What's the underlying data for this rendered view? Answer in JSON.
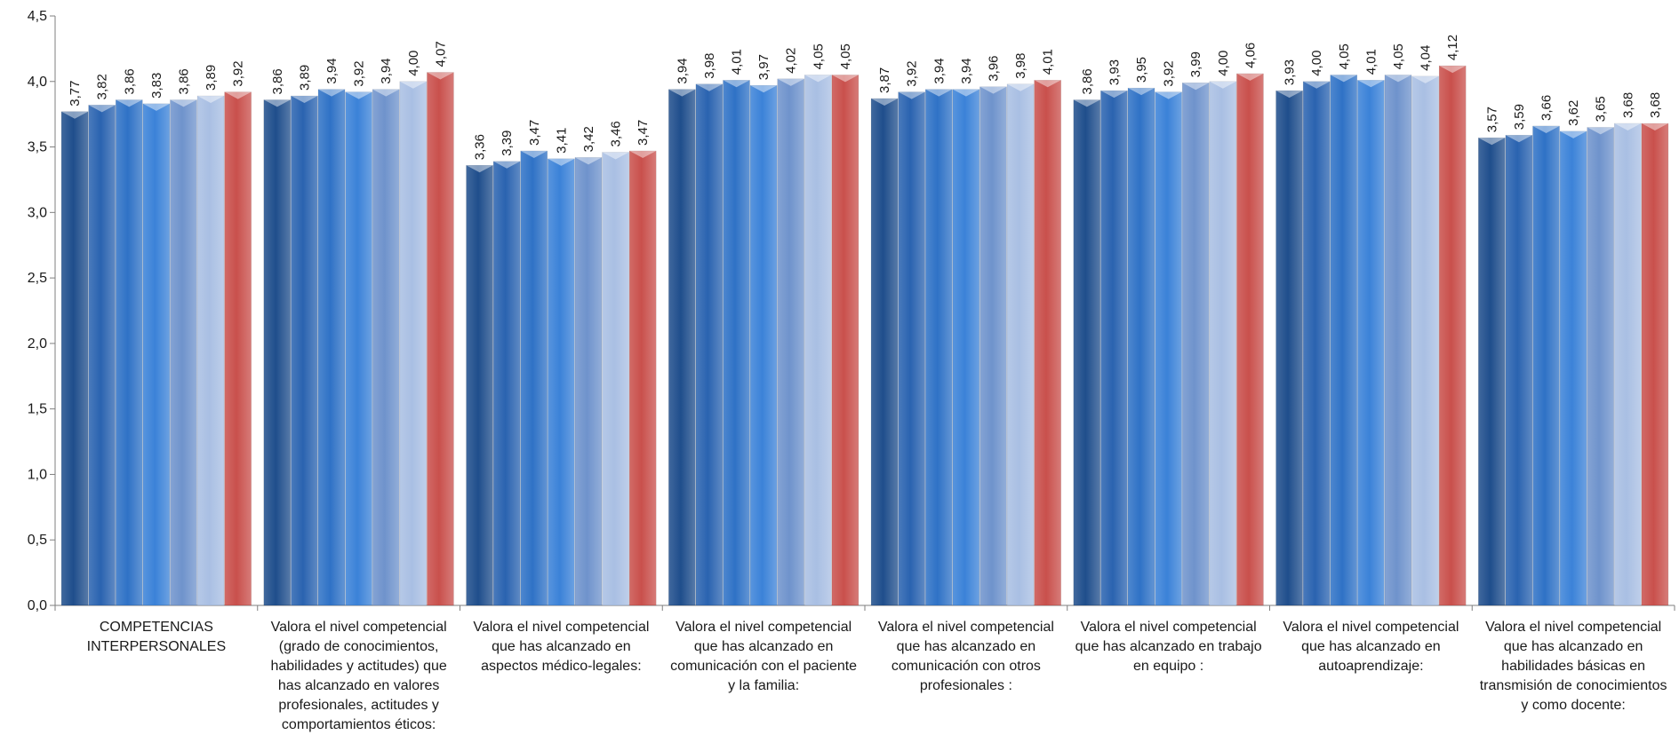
{
  "chart_data": {
    "type": "bar",
    "ylim": [
      0,
      4.5
    ],
    "yticks": [
      "0,0",
      "0,5",
      "1,0",
      "1,5",
      "2,0",
      "2,5",
      "3,0",
      "3,5",
      "4,0",
      "4,5"
    ],
    "ytick_values": [
      0,
      0.5,
      1.0,
      1.5,
      2.0,
      2.5,
      3.0,
      3.5,
      4.0,
      4.5
    ],
    "grid": false,
    "legend": "none",
    "categories": [
      [
        "COMPETENCIAS",
        "INTERPERSONALES"
      ],
      [
        "Valora el nivel competencial",
        "(grado de conocimientos,",
        "habilidades y actitudes) que",
        "has alcanzado en valores",
        "profesionales, actitudes y",
        "comportamientos éticos:"
      ],
      [
        "Valora el nivel competencial",
        "que has alcanzado en",
        "aspectos médico-legales:"
      ],
      [
        "Valora el nivel competencial",
        "que has alcanzado en",
        "comunicación con el paciente",
        "y la familia:"
      ],
      [
        "Valora el nivel competencial",
        "que has alcanzado en",
        "comunicación con otros",
        "profesionales :"
      ],
      [
        "Valora el nivel competencial",
        "que has alcanzado en trabajo",
        "en equipo :"
      ],
      [
        "Valora el nivel competencial",
        "que has alcanzado en",
        "autoaprendizaje:"
      ],
      [
        "Valora el nivel competencial",
        "que has alcanzado en",
        "habilidades básicas en",
        "transmisión de conocimientos",
        "y como docente:"
      ]
    ],
    "series_colors": [
      "#1f4e8c",
      "#2a63b0",
      "#2f72c6",
      "#3b82d8",
      "#6f93cc",
      "#a9bfe3",
      "#c9504c"
    ],
    "series": [
      {
        "values": [
          3.77,
          3.86,
          3.36,
          3.94,
          3.87,
          3.86,
          3.93,
          3.57
        ],
        "labels": [
          "3,77",
          "3,86",
          "3,36",
          "3,94",
          "3,87",
          "3,86",
          "3,93",
          "3,57"
        ]
      },
      {
        "values": [
          3.82,
          3.89,
          3.39,
          3.98,
          3.92,
          3.93,
          4.0,
          3.59
        ],
        "labels": [
          "3,82",
          "3,89",
          "3,39",
          "3,98",
          "3,92",
          "3,93",
          "4,00",
          "3,59"
        ]
      },
      {
        "values": [
          3.86,
          3.94,
          3.47,
          4.01,
          3.94,
          3.95,
          4.05,
          3.66
        ],
        "labels": [
          "3,86",
          "3,94",
          "3,47",
          "4,01",
          "3,94",
          "3,95",
          "4,05",
          "3,66"
        ]
      },
      {
        "values": [
          3.83,
          3.92,
          3.41,
          3.97,
          3.94,
          3.92,
          4.01,
          3.62
        ],
        "labels": [
          "3,83",
          "3,92",
          "3,41",
          "3,97",
          "3,94",
          "3,92",
          "4,01",
          "3,62"
        ]
      },
      {
        "values": [
          3.86,
          3.94,
          3.42,
          4.02,
          3.96,
          3.99,
          4.05,
          3.65
        ],
        "labels": [
          "3,86",
          "3,94",
          "3,42",
          "4,02",
          "3,96",
          "3,99",
          "4,05",
          "3,65"
        ]
      },
      {
        "values": [
          3.89,
          4.0,
          3.46,
          4.05,
          3.98,
          4.0,
          4.04,
          3.68
        ],
        "labels": [
          "3,89",
          "4,00",
          "3,46",
          "4,05",
          "3,98",
          "4,00",
          "4,04",
          "3,68"
        ]
      },
      {
        "values": [
          3.92,
          4.07,
          3.47,
          4.05,
          4.01,
          4.06,
          4.12,
          3.68
        ],
        "labels": [
          "3,92",
          "4,07",
          "3,47",
          "4,05",
          "4,01",
          "4,06",
          "4,12",
          "3,68"
        ]
      }
    ]
  }
}
